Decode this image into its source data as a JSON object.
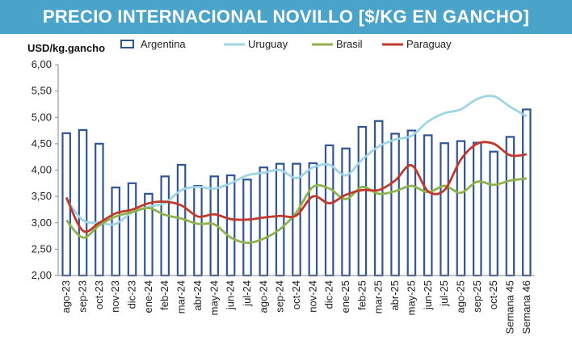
{
  "title": "PRECIO INTERNACIONAL NOVILLO [$/KG EN GANCHO]",
  "colors": {
    "banner": "#4aa3c9",
    "argentina": "#2f5597",
    "uruguay": "#9dd4e6",
    "brasil": "#8fb34a",
    "paraguay": "#c0392b"
  },
  "chart_data": {
    "type": "bar",
    "title": "PRECIO INTERNACIONAL NOVILLO [$/KG EN GANCHO]",
    "ylabel": "USD/kg.gancho",
    "xlabel": "",
    "ylim": [
      2.0,
      6.0
    ],
    "yticks": [
      "2,00",
      "2,50",
      "3,00",
      "3,50",
      "4,00",
      "4,50",
      "5,00",
      "5,50",
      "6,00"
    ],
    "grid": false,
    "legend": "top",
    "categories": [
      "ago-23",
      "sep-23",
      "oct-23",
      "nov-23",
      "dic-23",
      "ene-24",
      "feb-24",
      "mar-24",
      "abr-24",
      "may-24",
      "jun-24",
      "jul-24",
      "ago-24",
      "sep-24",
      "oct-24",
      "nov-24",
      "dic-24",
      "ene-25",
      "feb-25",
      "mar-25",
      "abr-25",
      "may-25",
      "jun-25",
      "jul-25",
      "ago-25",
      "sep-25",
      "oct-25",
      "Semana 45",
      "Semana 46"
    ],
    "series": [
      {
        "name": "Argentina",
        "kind": "bar",
        "values": [
          4.7,
          4.76,
          4.5,
          3.67,
          3.75,
          3.55,
          3.88,
          4.1,
          3.7,
          3.88,
          3.9,
          3.82,
          4.05,
          4.12,
          4.12,
          4.13,
          4.47,
          4.41,
          4.82,
          4.93,
          4.69,
          4.75,
          4.66,
          4.51,
          4.55,
          4.52,
          4.35,
          4.63,
          5.15
        ]
      },
      {
        "name": "Uruguay",
        "kind": "line",
        "values": [
          3.45,
          3.05,
          3.0,
          2.98,
          3.2,
          3.3,
          3.38,
          3.62,
          3.68,
          3.65,
          3.75,
          3.9,
          3.95,
          4.0,
          3.85,
          4.05,
          4.1,
          3.9,
          4.2,
          4.45,
          4.58,
          4.65,
          4.92,
          5.08,
          5.15,
          5.35,
          5.4,
          5.2,
          5.02
        ]
      },
      {
        "name": "Brasil",
        "kind": "line",
        "values": [
          3.05,
          2.72,
          2.95,
          3.12,
          3.2,
          3.28,
          3.15,
          3.08,
          2.98,
          2.97,
          2.72,
          2.62,
          2.7,
          2.88,
          3.2,
          3.68,
          3.65,
          3.45,
          3.68,
          3.55,
          3.6,
          3.7,
          3.58,
          3.7,
          3.57,
          3.78,
          3.72,
          3.8,
          3.84
        ]
      },
      {
        "name": "Paraguay",
        "kind": "line",
        "values": [
          3.48,
          2.85,
          3.0,
          3.18,
          3.25,
          3.37,
          3.4,
          3.33,
          3.12,
          3.16,
          3.07,
          3.06,
          3.1,
          3.13,
          3.14,
          3.5,
          3.37,
          3.53,
          3.62,
          3.62,
          3.8,
          4.09,
          3.6,
          3.62,
          4.2,
          4.5,
          4.5,
          4.28,
          4.3
        ]
      }
    ]
  }
}
